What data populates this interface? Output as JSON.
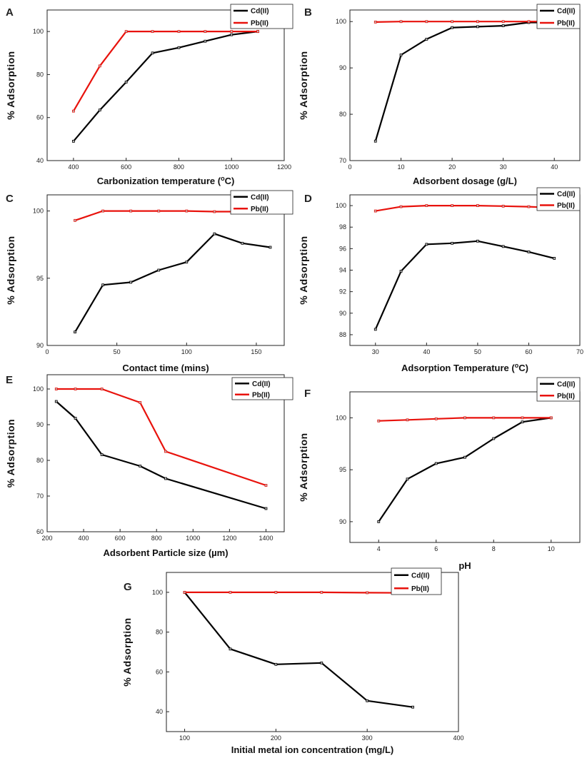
{
  "chart_data": [
    {
      "panel": "A",
      "type": "line",
      "xlabel": "Carbonization temperature (",
      "xlabel_sup": "o",
      "xlabel_tail": "C)",
      "ylabel": "% Adsorption",
      "xlim": [
        300,
        1200
      ],
      "ylim": [
        40,
        110
      ],
      "xticks": [
        400,
        600,
        800,
        1000,
        1200
      ],
      "yticks": [
        40,
        60,
        80,
        100
      ],
      "series": [
        {
          "name": "Cd(II)",
          "color": "#000000",
          "x": [
            400,
            500,
            600,
            700,
            800,
            900,
            1000,
            1100
          ],
          "y": [
            49,
            63.5,
            76.5,
            90,
            92.5,
            95.5,
            98.5,
            100
          ]
        },
        {
          "name": "Pb(II)",
          "color": "#e8120c",
          "x": [
            400,
            500,
            600,
            700,
            800,
            900,
            1000,
            1100
          ],
          "y": [
            63,
            84,
            100,
            100,
            100,
            100,
            100,
            100
          ]
        }
      ]
    },
    {
      "panel": "B",
      "type": "line",
      "xlabel": "Adsorbent dosage (g/L)",
      "ylabel": "% Adsorption",
      "xlim": [
        0,
        45
      ],
      "ylim": [
        70,
        102.5
      ],
      "xticks": [
        0,
        10,
        20,
        30,
        40
      ],
      "yticks": [
        70,
        80,
        90,
        100
      ],
      "series": [
        {
          "name": "Cd(II)",
          "color": "#000000",
          "x": [
            5,
            10,
            15,
            20,
            25,
            30,
            35,
            40
          ],
          "y": [
            74.2,
            92.8,
            96.2,
            98.7,
            98.9,
            99.1,
            99.8,
            99.8
          ]
        },
        {
          "name": "Pb(II)",
          "color": "#e8120c",
          "x": [
            5,
            10,
            15,
            20,
            25,
            30,
            35,
            40
          ],
          "y": [
            99.9,
            100,
            100,
            100,
            100,
            100,
            100,
            100
          ]
        }
      ]
    },
    {
      "panel": "C",
      "type": "line",
      "xlabel": "Contact time (mins)",
      "ylabel": "% Adsorption",
      "xlim": [
        0,
        170
      ],
      "ylim": [
        90,
        101.2
      ],
      "xticks": [
        0,
        50,
        100,
        150
      ],
      "yticks": [
        90,
        95,
        100
      ],
      "series": [
        {
          "name": "Cd(II)",
          "color": "#000000",
          "x": [
            20,
            40,
            60,
            80,
            100,
            120,
            140,
            160
          ],
          "y": [
            91,
            94.5,
            94.7,
            95.6,
            96.2,
            98.3,
            97.6,
            97.3
          ]
        },
        {
          "name": "Pb(II)",
          "color": "#e8120c",
          "x": [
            20,
            40,
            60,
            80,
            100,
            120,
            140,
            160
          ],
          "y": [
            99.3,
            100,
            100,
            100,
            100,
            99.95,
            99.95,
            99.95
          ]
        }
      ]
    },
    {
      "panel": "D",
      "type": "line",
      "xlabel": "Adsorption Temperature (",
      "xlabel_sup": "o",
      "xlabel_tail": "C)",
      "ylabel": "% Adsorption",
      "xlim": [
        25,
        70
      ],
      "ylim": [
        87,
        101
      ],
      "xticks": [
        30,
        40,
        50,
        60,
        70
      ],
      "yticks": [
        88,
        90,
        92,
        94,
        96,
        98,
        100
      ],
      "series": [
        {
          "name": "Cd(II)",
          "color": "#000000",
          "x": [
            30,
            35,
            40,
            45,
            50,
            55,
            60,
            65
          ],
          "y": [
            88.5,
            93.9,
            96.4,
            96.5,
            96.7,
            96.2,
            95.7,
            95.1
          ]
        },
        {
          "name": "Pb(II)",
          "color": "#e8120c",
          "x": [
            30,
            35,
            40,
            45,
            50,
            55,
            60,
            65
          ],
          "y": [
            99.5,
            99.9,
            100,
            100,
            100,
            99.95,
            99.9,
            99.8
          ]
        }
      ]
    },
    {
      "panel": "E",
      "type": "line",
      "xlabel": "Adsorbent Particle size (µm)",
      "ylabel": "% Adsorption",
      "xlim": [
        200,
        1500
      ],
      "ylim": [
        60,
        104
      ],
      "xticks": [
        200,
        400,
        600,
        800,
        1000,
        1200,
        1400
      ],
      "yticks": [
        60,
        70,
        80,
        90,
        100
      ],
      "series": [
        {
          "name": "Cd(II)",
          "color": "#000000",
          "x": [
            250,
            355,
            500,
            710,
            850,
            1400
          ],
          "y": [
            96.5,
            91.8,
            81.6,
            78.4,
            74.9,
            66.5
          ]
        },
        {
          "name": "Pb(II)",
          "color": "#e8120c",
          "x": [
            250,
            355,
            500,
            710,
            850,
            1400
          ],
          "y": [
            100,
            100,
            100,
            96.2,
            82.5,
            73
          ]
        }
      ]
    },
    {
      "panel": "F",
      "type": "line",
      "xlabel": "pH",
      "ylabel": "% Adsorption",
      "xlim": [
        3,
        11
      ],
      "ylim": [
        88,
        102.5
      ],
      "xticks": [
        4,
        6,
        8,
        10
      ],
      "yticks": [
        90,
        95,
        100
      ],
      "series": [
        {
          "name": "Cd(II)",
          "color": "#000000",
          "x": [
            4,
            5,
            6,
            7,
            8,
            9,
            10
          ],
          "y": [
            90,
            94.1,
            95.6,
            96.2,
            98,
            99.6,
            100
          ]
        },
        {
          "name": "Pb(II)",
          "color": "#e8120c",
          "x": [
            4,
            5,
            6,
            7,
            8,
            9,
            10
          ],
          "y": [
            99.7,
            99.8,
            99.9,
            100,
            100,
            100,
            100
          ]
        }
      ]
    },
    {
      "panel": "G",
      "type": "line",
      "xlabel": "Initial metal ion concentration (mg/L)",
      "ylabel": "% Adsorption",
      "xlim": [
        80,
        400
      ],
      "ylim": [
        30,
        110
      ],
      "xticks": [
        100,
        200,
        300,
        400
      ],
      "yticks": [
        40,
        60,
        80,
        100
      ],
      "series": [
        {
          "name": "Cd(II)",
          "color": "#000000",
          "x": [
            100,
            150,
            200,
            250,
            300,
            350
          ],
          "y": [
            100,
            71.5,
            63.8,
            64.5,
            45.5,
            42.3
          ]
        },
        {
          "name": "Pb(II)",
          "color": "#e8120c",
          "x": [
            100,
            150,
            200,
            250,
            300,
            350
          ],
          "y": [
            100,
            100,
            100,
            100,
            99.8,
            99.7
          ]
        }
      ]
    }
  ]
}
